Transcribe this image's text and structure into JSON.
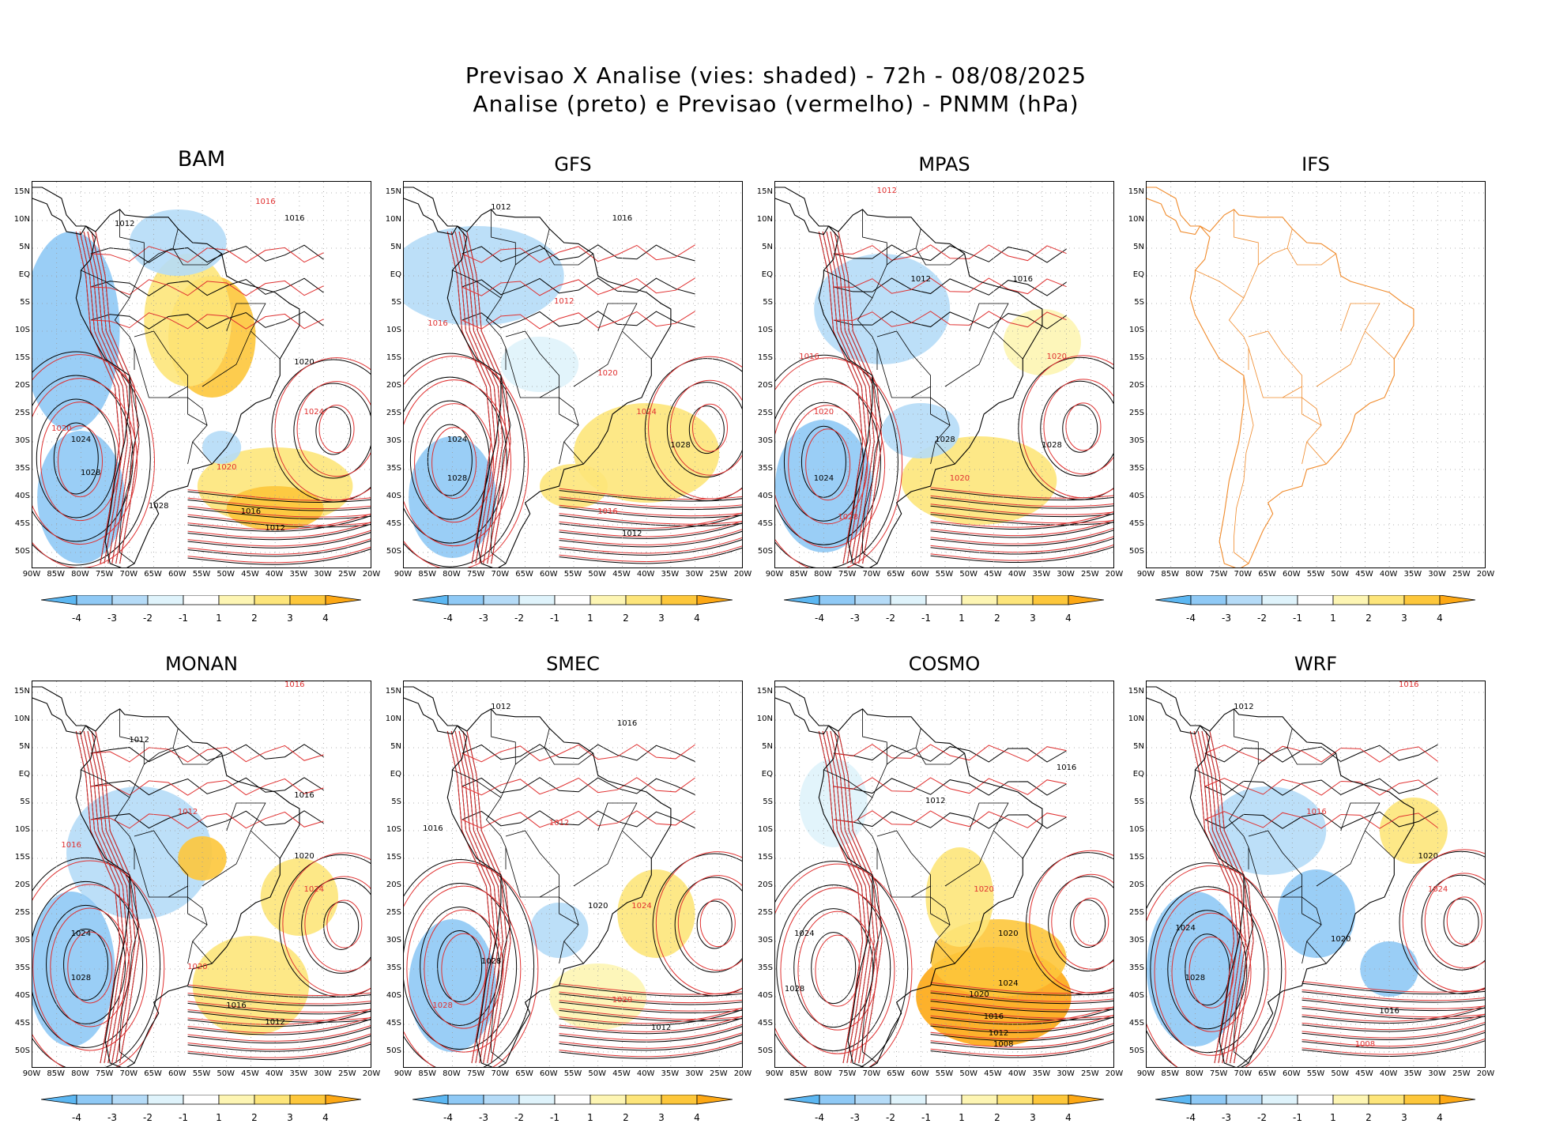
{
  "title": {
    "line1": "Previsao X Analise (vies: shaded) - 72h - 08/08/2025",
    "line2": "Analise (preto) e Previsao (vermelho) - PNMM (hPa)"
  },
  "axes": {
    "lat_labels": [
      "15N",
      "10N",
      "5N",
      "EQ",
      "5S",
      "10S",
      "15S",
      "20S",
      "25S",
      "30S",
      "35S",
      "40S",
      "45S",
      "50S"
    ],
    "lon_labels": [
      "90W",
      "85W",
      "80W",
      "75W",
      "70W",
      "65W",
      "60W",
      "55W",
      "50W",
      "45W",
      "40W",
      "35W",
      "30W",
      "25W",
      "20W"
    ],
    "lon_range": [
      -90,
      -20
    ],
    "lat_range": [
      -53,
      17
    ]
  },
  "colorbar": {
    "labels": [
      "-4",
      "-3",
      "-2",
      "-1",
      "1",
      "2",
      "3",
      "4"
    ],
    "colors": [
      "#5cb7f2",
      "#8fc9f5",
      "#b5dbf7",
      "#dff3fb",
      "#ffffff",
      "#fdf5b3",
      "#fde57a",
      "#fdc73b",
      "#fda814"
    ]
  },
  "colors": {
    "analysis": "#000000",
    "forecast": "#e03030",
    "coastline_ifs": "#f08a2a"
  },
  "panels": [
    {
      "name": "BAM",
      "big": true,
      "has_data": true,
      "labels": [
        [
          "1016",
          -42,
          13,
          "f"
        ],
        [
          "1016",
          -36,
          10,
          "a"
        ],
        [
          "1012",
          -71,
          9,
          "a"
        ],
        [
          "1020",
          -34,
          -16,
          "a"
        ],
        [
          "1024",
          -32,
          -25,
          "f"
        ],
        [
          "1024",
          -80,
          -30,
          "a"
        ],
        [
          "1020",
          -84,
          -28,
          "f"
        ],
        [
          "1028",
          -78,
          -36,
          "a"
        ],
        [
          "1016",
          -45,
          -43,
          "a"
        ],
        [
          "1012",
          -40,
          -46,
          "a"
        ],
        [
          "1020",
          -50,
          -35,
          "f"
        ],
        [
          "1028",
          -64,
          -42,
          "a"
        ]
      ],
      "patches": [
        [
          "-3",
          -82,
          -10,
          10,
          18
        ],
        [
          "-3",
          -80,
          -40,
          9,
          12
        ],
        [
          "2",
          -40,
          -38,
          16,
          7
        ],
        [
          "3",
          -53,
          -11,
          9,
          11
        ],
        [
          "2",
          -58,
          -8,
          9,
          12
        ],
        [
          "-2",
          -60,
          6,
          10,
          6
        ],
        [
          "3",
          -40,
          -42,
          10,
          4
        ],
        [
          "-2",
          -51,
          -31,
          4,
          3
        ]
      ]
    },
    {
      "name": "GFS",
      "big": false,
      "has_data": true,
      "labels": [
        [
          "1012",
          -70,
          12,
          "a"
        ],
        [
          "1016",
          -45,
          10,
          "a"
        ],
        [
          "1016",
          -83,
          -9,
          "f"
        ],
        [
          "1012",
          -57,
          -5,
          "f"
        ],
        [
          "1020",
          -48,
          -18,
          "f"
        ],
        [
          "1024",
          -40,
          -25,
          "f"
        ],
        [
          "1028",
          -33,
          -31,
          "a"
        ],
        [
          "1024",
          -79,
          -30,
          "a"
        ],
        [
          "1028",
          -79,
          -37,
          "a"
        ],
        [
          "1016",
          -48,
          -43,
          "f"
        ],
        [
          "1012",
          -43,
          -47,
          "a"
        ]
      ],
      "patches": [
        [
          "-2",
          -75,
          0,
          18,
          9
        ],
        [
          "-3",
          -80,
          -40,
          9,
          11
        ],
        [
          "2",
          -40,
          -32,
          15,
          9
        ],
        [
          "2",
          -55,
          -38,
          7,
          4
        ],
        [
          "-1",
          -62,
          -16,
          8,
          5
        ]
      ]
    },
    {
      "name": "MPAS",
      "big": false,
      "has_data": true,
      "labels": [
        [
          "1012",
          -67,
          15,
          "f"
        ],
        [
          "1012",
          -60,
          -1,
          "a"
        ],
        [
          "1016",
          -39,
          -1,
          "a"
        ],
        [
          "1016",
          -83,
          -15,
          "f"
        ],
        [
          "1020",
          -32,
          -15,
          "f"
        ],
        [
          "1024",
          -80,
          -37,
          "a"
        ],
        [
          "1020",
          -80,
          -25,
          "f"
        ],
        [
          "1028",
          -55,
          -30,
          "a"
        ],
        [
          "1028",
          -75,
          -44,
          "f"
        ],
        [
          "1020",
          -52,
          -37,
          "f"
        ],
        [
          "1028",
          -33,
          -31,
          "a"
        ]
      ],
      "patches": [
        [
          "-2",
          -68,
          -6,
          14,
          10
        ],
        [
          "-3",
          -80,
          -38,
          10,
          12
        ],
        [
          "2",
          -48,
          -37,
          16,
          8
        ],
        [
          "-2",
          -60,
          -28,
          8,
          5
        ],
        [
          "1",
          -35,
          -12,
          8,
          6
        ]
      ]
    },
    {
      "name": "IFS",
      "big": false,
      "has_data": false,
      "labels": [],
      "patches": []
    },
    {
      "name": "MONAN",
      "big": false,
      "has_data": true,
      "labels": [
        [
          "1016",
          -36,
          16,
          "f"
        ],
        [
          "1012",
          -68,
          6,
          "a"
        ],
        [
          "1016",
          -82,
          -13,
          "f"
        ],
        [
          "1012",
          -58,
          -7,
          "f"
        ],
        [
          "1016",
          -34,
          -4,
          "a"
        ],
        [
          "1020",
          -34,
          -15,
          "a"
        ],
        [
          "1024",
          -32,
          -21,
          "f"
        ],
        [
          "1024",
          -80,
          -29,
          "a"
        ],
        [
          "1028",
          -80,
          -37,
          "a"
        ],
        [
          "1020",
          -56,
          -35,
          "f"
        ],
        [
          "1016",
          -48,
          -42,
          "a"
        ],
        [
          "1012",
          -40,
          -45,
          "a"
        ]
      ],
      "patches": [
        [
          "-2",
          -68,
          -14,
          15,
          12
        ],
        [
          "-3",
          -82,
          -35,
          9,
          14
        ],
        [
          "2",
          -45,
          -38,
          12,
          9
        ],
        [
          "2",
          -35,
          -22,
          8,
          7
        ],
        [
          "3",
          -55,
          -15,
          5,
          4
        ]
      ]
    },
    {
      "name": "SMEC",
      "big": false,
      "has_data": true,
      "labels": [
        [
          "1012",
          -70,
          12,
          "a"
        ],
        [
          "1016",
          -44,
          9,
          "a"
        ],
        [
          "1016",
          -84,
          -10,
          "a"
        ],
        [
          "1012",
          -58,
          -9,
          "f"
        ],
        [
          "1020",
          -50,
          -24,
          "a"
        ],
        [
          "1024",
          -41,
          -24,
          "f"
        ],
        [
          "1028",
          -72,
          -34,
          "a"
        ],
        [
          "1020",
          -45,
          -41,
          "f"
        ],
        [
          "1012",
          -37,
          -46,
          "a"
        ],
        [
          "1028",
          -82,
          -42,
          "f"
        ]
      ],
      "patches": [
        [
          "-3",
          -80,
          -38,
          9,
          12
        ],
        [
          "-2",
          -58,
          -28,
          6,
          5
        ],
        [
          "2",
          -38,
          -25,
          8,
          8
        ],
        [
          "1",
          -50,
          -40,
          10,
          6
        ]
      ]
    },
    {
      "name": "COSMO",
      "big": false,
      "has_data": true,
      "labels": [
        [
          "1012",
          -57,
          -5,
          "a"
        ],
        [
          "1016",
          -30,
          1,
          "a"
        ],
        [
          "1020",
          -47,
          -21,
          "f"
        ],
        [
          "1020",
          -42,
          -29,
          "a"
        ],
        [
          "1024",
          -84,
          -29,
          "a"
        ],
        [
          "1028",
          -86,
          -39,
          "a"
        ],
        [
          "1024",
          -42,
          -38,
          "a"
        ],
        [
          "1020",
          -48,
          -40,
          "a"
        ],
        [
          "1016",
          -45,
          -44,
          "a"
        ],
        [
          "1012",
          -44,
          -47,
          "a"
        ],
        [
          "1008",
          -43,
          -49,
          "a"
        ]
      ],
      "patches": [
        [
          "4",
          -45,
          -40,
          16,
          9
        ],
        [
          "3",
          -44,
          -33,
          14,
          7
        ],
        [
          "2",
          -52,
          -22,
          7,
          9
        ],
        [
          "-1",
          -78,
          -5,
          7,
          8
        ]
      ]
    },
    {
      "name": "WRF",
      "big": false,
      "has_data": true,
      "labels": [
        [
          "1016",
          -36,
          16,
          "f"
        ],
        [
          "1012",
          -70,
          12,
          "a"
        ],
        [
          "1016",
          -55,
          -7,
          "f"
        ],
        [
          "1020",
          -32,
          -15,
          "a"
        ],
        [
          "1024",
          -30,
          -21,
          "f"
        ],
        [
          "1024",
          -82,
          -28,
          "a"
        ],
        [
          "1028",
          -80,
          -37,
          "a"
        ],
        [
          "1016",
          -40,
          -43,
          "a"
        ],
        [
          "1008",
          -45,
          -49,
          "f"
        ],
        [
          "1020",
          -50,
          -30,
          "a"
        ]
      ],
      "patches": [
        [
          "-3",
          -80,
          -35,
          10,
          14
        ],
        [
          "-3",
          -55,
          -25,
          8,
          8
        ],
        [
          "-2",
          -65,
          -10,
          12,
          8
        ],
        [
          "-3",
          -40,
          -35,
          6,
          5
        ],
        [
          "2",
          -35,
          -10,
          7,
          6
        ]
      ]
    }
  ]
}
